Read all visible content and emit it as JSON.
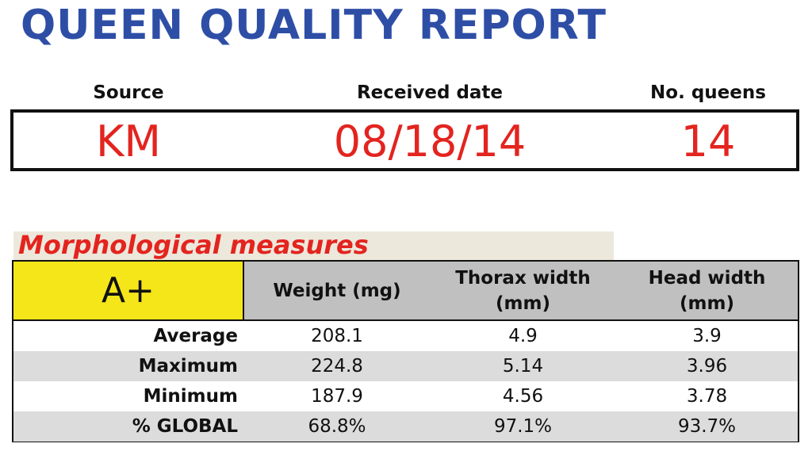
{
  "header": {
    "title": "QUEEN QUALITY REPORT"
  },
  "info": {
    "fields": [
      {
        "label": "Source",
        "value": "KM"
      },
      {
        "label": "Received date",
        "value": "08/18/14"
      },
      {
        "label": "No. queens",
        "value": "14"
      }
    ]
  },
  "section": {
    "title": "Morphological measures"
  },
  "table": {
    "grade": "A+",
    "columns": [
      "Weight (mg)",
      "Thorax width (mm)",
      "Head width (mm)"
    ],
    "rows": [
      {
        "label": "Average",
        "cells": [
          "208.1",
          "4.9",
          "3.9"
        ]
      },
      {
        "label": "Maximum",
        "cells": [
          "224.8",
          "5.14",
          "3.96"
        ]
      },
      {
        "label": "Minimum",
        "cells": [
          "187.9",
          "4.56",
          "3.78"
        ]
      },
      {
        "label": "% GLOBAL",
        "cells": [
          "68.8%",
          "97.1%",
          "93.7%"
        ]
      }
    ]
  }
}
